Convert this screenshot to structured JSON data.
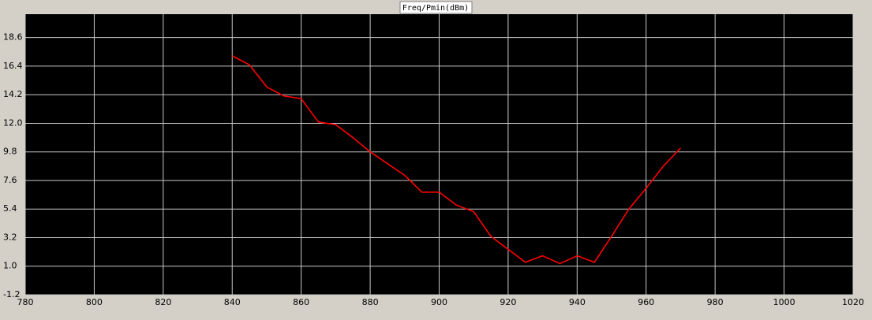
{
  "chart_data": {
    "type": "line",
    "title": "Freq/Pmin(dBm)",
    "x": [
      840,
      845,
      850,
      855,
      860,
      865,
      870,
      875,
      880,
      885,
      890,
      895,
      900,
      905,
      910,
      915,
      920,
      925,
      930,
      935,
      940,
      945,
      950,
      955,
      960,
      965,
      970
    ],
    "series": [
      {
        "color": "#ff0000",
        "values": [
          17.2,
          16.5,
          14.8,
          14.1,
          13.9,
          12.1,
          11.9,
          10.9,
          9.8,
          8.9,
          8.0,
          6.7,
          6.7,
          5.7,
          5.2,
          3.3,
          2.3,
          1.3,
          1.8,
          1.2,
          1.8,
          1.3,
          3.3,
          5.4,
          7.0,
          8.7,
          10.1
        ]
      }
    ],
    "xlim": [
      780,
      1020
    ],
    "xticks": [
      780,
      800,
      820,
      840,
      860,
      880,
      900,
      920,
      940,
      960,
      980,
      1000,
      1020
    ],
    "ylim": [
      -1.2,
      20.4
    ],
    "yticks": [
      -1.2,
      {
        "value": 1,
        "label": "1.0"
      },
      3.2,
      5.4,
      7.6,
      9.8,
      {
        "value": 12,
        "label": "12.0"
      },
      14.2,
      16.4,
      18.6
    ],
    "grid": true
  }
}
